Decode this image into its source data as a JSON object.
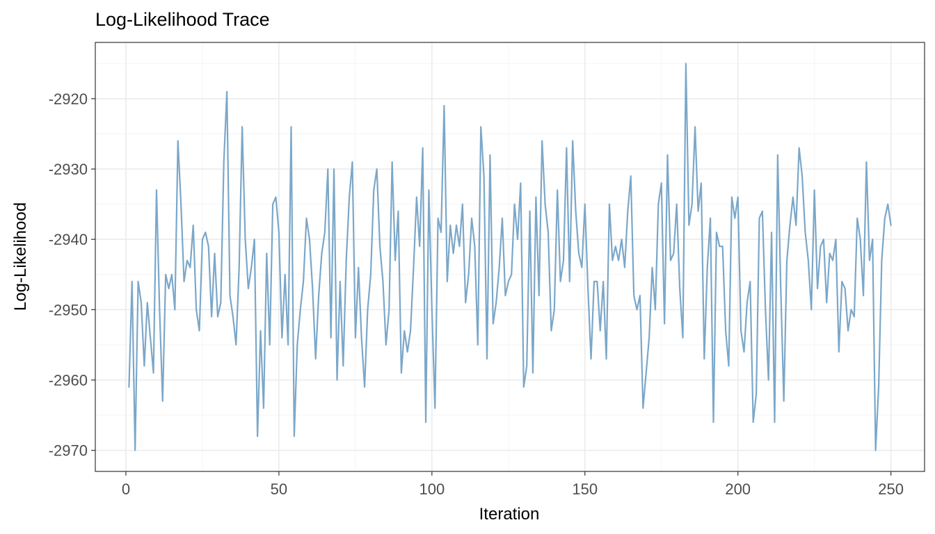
{
  "chart_data": {
    "type": "line",
    "title": "Log-Likelihood Trace",
    "xlabel": "Iteration",
    "ylabel": "Log-Likelihood",
    "xlim": [
      -10,
      261
    ],
    "ylim": [
      -2973,
      -2912
    ],
    "x_ticks": [
      0,
      50,
      100,
      150,
      200,
      250
    ],
    "y_ticks": [
      -2970,
      -2960,
      -2950,
      -2940,
      -2930,
      -2920
    ],
    "grid": true,
    "legend": "none",
    "series": [
      {
        "color": "#7ba7c9",
        "x_start": 1,
        "x_step": 1,
        "values": [
          -2961,
          -2946,
          -2970,
          -2946,
          -2949,
          -2958,
          -2949,
          -2954,
          -2959,
          -2933,
          -2950,
          -2963,
          -2945,
          -2947,
          -2945,
          -2950,
          -2926,
          -2935,
          -2946,
          -2943,
          -2944,
          -2938,
          -2950,
          -2953,
          -2940,
          -2939,
          -2941,
          -2951,
          -2942,
          -2951,
          -2949,
          -2929,
          -2919,
          -2948,
          -2951,
          -2955,
          -2944,
          -2924,
          -2940,
          -2947,
          -2944,
          -2940,
          -2968,
          -2953,
          -2964,
          -2942,
          -2955,
          -2935,
          -2934,
          -2939,
          -2954,
          -2945,
          -2955,
          -2924,
          -2968,
          -2955,
          -2950,
          -2946,
          -2937,
          -2940,
          -2947,
          -2957,
          -2948,
          -2942,
          -2939,
          -2930,
          -2954,
          -2930,
          -2960,
          -2946,
          -2958,
          -2943,
          -2934,
          -2929,
          -2954,
          -2944,
          -2954,
          -2961,
          -2950,
          -2945,
          -2933,
          -2930,
          -2941,
          -2946,
          -2955,
          -2950,
          -2929,
          -2943,
          -2936,
          -2959,
          -2953,
          -2956,
          -2953,
          -2944,
          -2934,
          -2941,
          -2927,
          -2966,
          -2933,
          -2950,
          -2964,
          -2937,
          -2939,
          -2921,
          -2946,
          -2938,
          -2942,
          -2938,
          -2941,
          -2935,
          -2949,
          -2945,
          -2937,
          -2941,
          -2955,
          -2924,
          -2931,
          -2957,
          -2928,
          -2952,
          -2949,
          -2944,
          -2937,
          -2948,
          -2946,
          -2945,
          -2935,
          -2940,
          -2932,
          -2961,
          -2958,
          -2936,
          -2959,
          -2934,
          -2948,
          -2926,
          -2935,
          -2939,
          -2953,
          -2950,
          -2933,
          -2946,
          -2943,
          -2927,
          -2946,
          -2926,
          -2936,
          -2942,
          -2944,
          -2935,
          -2947,
          -2957,
          -2946,
          -2946,
          -2953,
          -2946,
          -2957,
          -2935,
          -2943,
          -2941,
          -2943,
          -2940,
          -2944,
          -2936,
          -2931,
          -2948,
          -2950,
          -2948,
          -2964,
          -2959,
          -2954,
          -2944,
          -2950,
          -2935,
          -2932,
          -2952,
          -2928,
          -2943,
          -2942,
          -2935,
          -2947,
          -2954,
          -2915,
          -2938,
          -2935,
          -2924,
          -2936,
          -2932,
          -2957,
          -2944,
          -2937,
          -2966,
          -2939,
          -2941,
          -2941,
          -2953,
          -2958,
          -2934,
          -2937,
          -2934,
          -2953,
          -2956,
          -2949,
          -2946,
          -2966,
          -2962,
          -2937,
          -2936,
          -2950,
          -2960,
          -2939,
          -2966,
          -2928,
          -2947,
          -2963,
          -2943,
          -2938,
          -2934,
          -2938,
          -2927,
          -2931,
          -2939,
          -2943,
          -2950,
          -2933,
          -2947,
          -2941,
          -2940,
          -2949,
          -2942,
          -2943,
          -2940,
          -2956,
          -2946,
          -2947,
          -2953,
          -2950,
          -2951,
          -2937,
          -2940,
          -2948,
          -2929,
          -2943,
          -2940,
          -2970,
          -2961,
          -2943,
          -2937,
          -2935,
          -2938
        ]
      }
    ]
  }
}
